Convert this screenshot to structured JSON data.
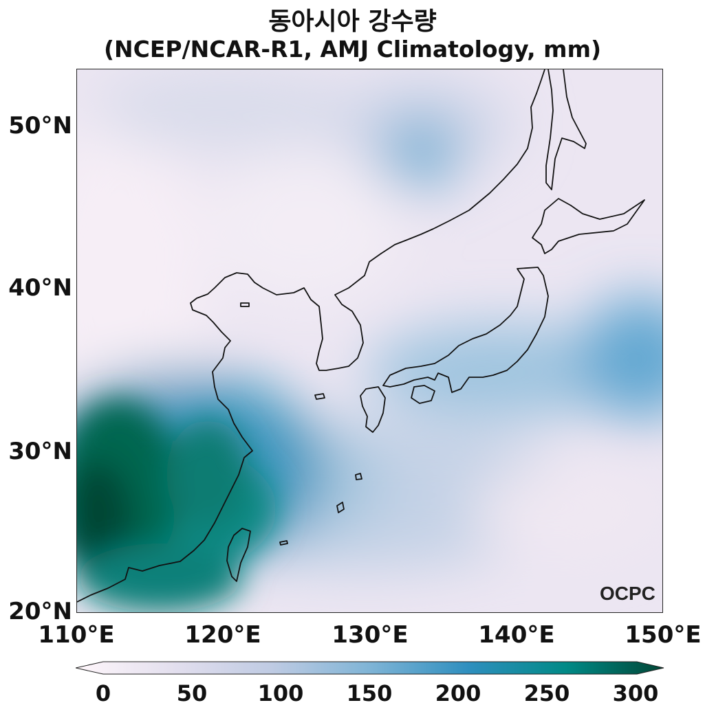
{
  "title": {
    "line1": "동아시아 강수량",
    "line2": "(NCEP/NCAR-R1, AMJ Climatology, mm)"
  },
  "map": {
    "lat_ticks": [
      "50°N",
      "40°N",
      "30°N",
      "20°N"
    ],
    "lon_ticks": [
      "110°E",
      "120°E",
      "130°E",
      "140°E",
      "150°E"
    ],
    "lon_range_deg": [
      110,
      150
    ],
    "lat_range_deg": [
      20,
      53.5
    ],
    "logo": "OCPC"
  },
  "colorbar": {
    "labels": [
      "0",
      "50",
      "100",
      "150",
      "200",
      "250",
      "300"
    ],
    "min": 0,
    "max": 300,
    "colors": [
      "#fff7fb",
      "#e3dfee",
      "#bfcbe3",
      "#7fb4d6",
      "#2f8fbf",
      "#018a87",
      "#014636"
    ]
  }
}
